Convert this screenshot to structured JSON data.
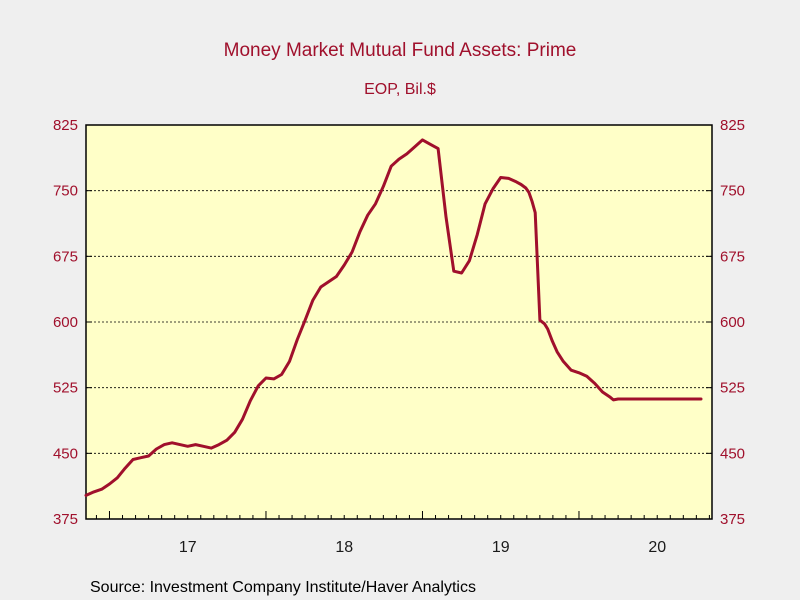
{
  "chart_data": {
    "type": "line",
    "title": "Money Market Mutual Fund Assets: Prime",
    "subtitle": "EOP, Bil.$",
    "source": "Source:  Investment Company Institute/Haver Analytics",
    "ylim": [
      375,
      825
    ],
    "yticks": [
      "825",
      "750",
      "675",
      "600",
      "525",
      "450",
      "375"
    ],
    "xticks": [
      "17",
      "18",
      "19",
      "20"
    ],
    "xlim": [
      2016.85,
      2020.85
    ],
    "grid": true,
    "colors": {
      "line": "#a0102c",
      "plot_bg": "#ffffc8",
      "page_bg": "#efefef",
      "text": "#a0102c"
    },
    "series": [
      {
        "x": [
          2016.85,
          2016.9,
          2016.95,
          2017.0,
          2017.05,
          2017.1,
          2017.15,
          2017.2,
          2017.25,
          2017.3,
          2017.35,
          2017.4,
          2017.45,
          2017.5,
          2017.55,
          2017.6,
          2017.65,
          2017.7,
          2017.75,
          2017.8,
          2017.85,
          2017.9,
          2017.95,
          2018.0,
          2018.05,
          2018.1,
          2018.15,
          2018.2,
          2018.25,
          2018.3,
          2018.35,
          2018.4,
          2018.45,
          2018.5,
          2018.55,
          2018.6,
          2018.65,
          2018.7,
          2018.75,
          2018.8,
          2018.85,
          2018.9,
          2018.95,
          2019.0,
          2019.05,
          2019.1,
          2019.15,
          2019.2,
          2019.25,
          2019.3,
          2019.35,
          2019.4,
          2019.45,
          2019.5,
          2019.55,
          2019.6,
          2019.63,
          2019.66,
          2019.68,
          2019.7,
          2019.72,
          2019.75,
          2019.78,
          2019.8,
          2019.83,
          2019.86,
          2019.9,
          2019.95,
          2020.0,
          2020.05,
          2020.1,
          2020.15,
          2020.2,
          2020.22,
          2020.25,
          2020.28,
          2020.32,
          2020.36,
          2020.4,
          2020.45,
          2020.5,
          2020.55,
          2020.6,
          2020.65,
          2020.7,
          2020.75,
          2020.78
        ],
        "values": [
          402,
          406,
          409,
          415,
          422,
          433,
          443,
          445,
          447,
          455,
          460,
          462,
          460,
          458,
          460,
          458,
          456,
          460,
          465,
          474,
          489,
          510,
          527,
          536,
          535,
          540,
          555,
          580,
          602,
          625,
          640,
          646,
          652,
          665,
          680,
          703,
          722,
          735,
          755,
          778,
          786,
          792,
          800,
          808,
          803,
          798,
          720,
          658,
          656,
          670,
          700,
          735,
          752,
          765,
          764,
          760,
          757,
          753,
          748,
          738,
          725,
          602,
          598,
          592,
          578,
          566,
          555,
          545,
          542,
          538,
          530,
          520,
          514,
          511,
          512,
          512,
          512,
          512,
          512,
          512,
          512,
          512,
          512,
          512,
          512,
          512,
          512
        ]
      }
    ]
  }
}
